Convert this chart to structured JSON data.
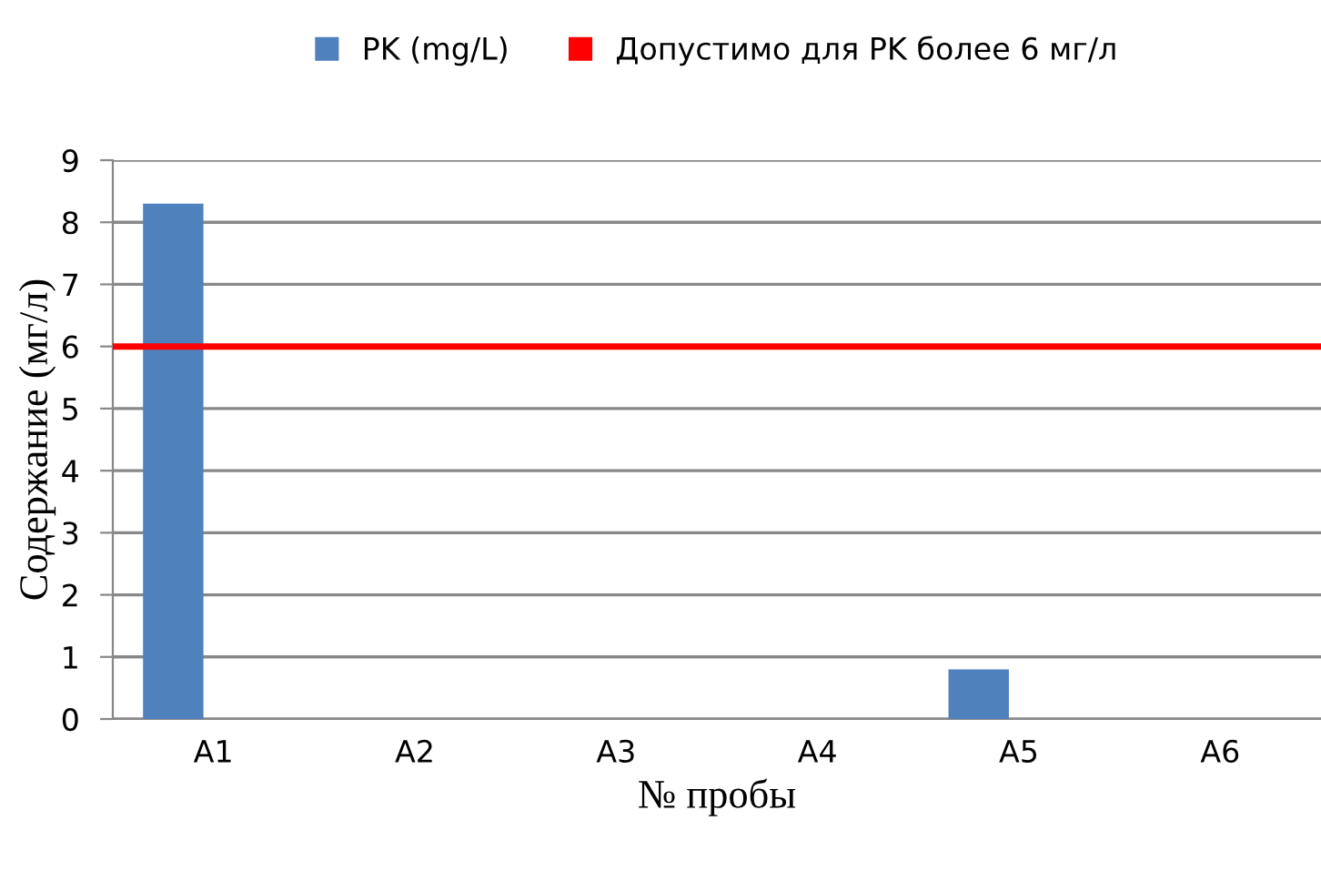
{
  "chart_data": {
    "type": "bar",
    "xlabel": "№ пробы",
    "ylabel": "Содержание (мг/л)",
    "categories": [
      "A1",
      "A2",
      "A3",
      "A4",
      "A5",
      "A6"
    ],
    "series": [
      {
        "name": "PK (mg/L)",
        "color": "#4f81bd",
        "values": [
          8.3,
          0,
          0,
          0,
          0.8,
          0
        ]
      }
    ],
    "ylim": [
      0,
      9
    ],
    "yticks": [
      0,
      1,
      2,
      3,
      4,
      5,
      6,
      7,
      8,
      9
    ],
    "grid": "y",
    "legend": "top",
    "ref_lines": [
      {
        "axis": "y",
        "value": 6,
        "label": "Допустимо для PK более 6 мг/л",
        "color": "#ff0000"
      }
    ]
  }
}
